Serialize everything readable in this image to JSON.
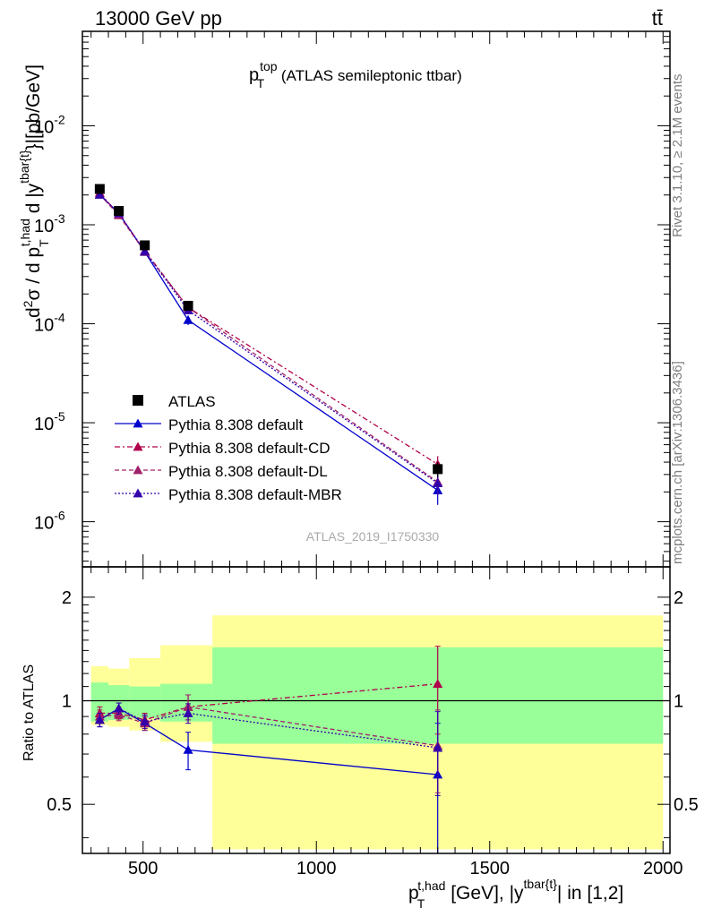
{
  "header": {
    "left": "13000 GeV pp",
    "right": "tt̄"
  },
  "side_text": {
    "rivet": "Rivet 3.1.10, ≥ 2.1M events",
    "mcplots": "mcplots.cern.ch [arXiv:1306.3436]"
  },
  "chart_data": [
    {
      "type": "line",
      "panel": "main",
      "title": {
        "main": "p",
        "sup": "top",
        "sub": "T",
        "rest": " (ATLAS semileptonic ttbar)"
      },
      "ylabel": "d²σ / d p_T^{t,had} d |y^{tbar{t}}|[pb/GeV]",
      "yscale": "log",
      "ylim": [
        3.5e-07,
        0.09
      ],
      "xlim": [
        325,
        2020
      ],
      "ytick_labels": [
        {
          "base": "10",
          "exp": "-6",
          "v": 1e-06
        },
        {
          "base": "10",
          "exp": "-5",
          "v": 1e-05
        },
        {
          "base": "10",
          "exp": "-4",
          "v": 0.0001
        },
        {
          "base": "10",
          "exp": "-3",
          "v": 0.001
        },
        {
          "base": "10",
          "exp": "-2",
          "v": 0.01
        }
      ],
      "watermark": "ATLAS_2019_I1750330",
      "legend_position": "lower-left",
      "data_points": {
        "name": "ATLAS",
        "color": "#000000",
        "x": [
          375,
          430,
          505,
          630,
          1350
        ],
        "y": [
          0.0023,
          0.00138,
          0.00062,
          0.000152,
          3.4e-06
        ],
        "bins": [
          [
            350,
            400
          ],
          [
            400,
            460
          ],
          [
            460,
            550
          ],
          [
            550,
            700
          ],
          [
            700,
            2000
          ]
        ],
        "err_lo": [
          0.0002,
          0.0001,
          4e-05,
          1.2e-05,
          6e-07
        ],
        "err_hi": [
          0.0002,
          0.0001,
          4e-05,
          1.2e-05,
          6e-07
        ]
      },
      "series": [
        {
          "name": "Pythia 8.308 default",
          "color": "#0000cc",
          "dash": "solid",
          "x": [
            375,
            430,
            505,
            630,
            1350
          ],
          "y": [
            0.00201,
            0.00131,
            0.000531,
            0.000109,
            2.08e-06
          ],
          "err_lo": [
            8e-05,
            5e-05,
            3e-05,
            1.2e-05,
            6e-07
          ],
          "err_hi": [
            8e-05,
            5e-05,
            3e-05,
            1.2e-05,
            6e-07
          ]
        },
        {
          "name": "Pythia 8.308 default-CD",
          "color": "#b0004a",
          "dash": "6,3,2,3",
          "x": [
            375,
            430,
            505,
            630,
            1350
          ],
          "y": [
            0.0021,
            0.00127,
            0.000546,
            0.000146,
            3.8e-06
          ],
          "err_lo": [
            8e-05,
            5e-05,
            3e-05,
            1.2e-05,
            8e-07
          ],
          "err_hi": [
            8e-05,
            5e-05,
            3e-05,
            1.2e-05,
            8e-07
          ]
        },
        {
          "name": "Pythia 8.308 default-DL",
          "color": "#a0206a",
          "dash": "5,3",
          "x": [
            375,
            430,
            505,
            630,
            1350
          ],
          "y": [
            0.00202,
            0.00125,
            0.000534,
            0.000146,
            2.52e-06
          ],
          "err_lo": [
            8e-05,
            5e-05,
            3e-05,
            1.2e-05,
            6e-07
          ],
          "err_hi": [
            8e-05,
            5e-05,
            3e-05,
            1.2e-05,
            6e-07
          ]
        },
        {
          "name": "Pythia 8.308 default-MBR",
          "color": "#3300aa",
          "dash": "2,2",
          "x": [
            375,
            430,
            505,
            630,
            1350
          ],
          "y": [
            0.00202,
            0.00131,
            0.000541,
            0.000137,
            2.45e-06
          ],
          "err_lo": [
            8e-05,
            5e-05,
            3e-05,
            1.2e-05,
            6e-07
          ],
          "err_hi": [
            8e-05,
            5e-05,
            3e-05,
            1.2e-05,
            6e-07
          ]
        }
      ]
    },
    {
      "type": "line",
      "panel": "ratio",
      "ylabel": "Ratio to ATLAS",
      "yscale": "log",
      "ylim": [
        0.36,
        2.45
      ],
      "xlim": [
        325,
        2020
      ],
      "reference_line": 1,
      "ytick_labels": [
        {
          "v": 0.5,
          "label": "0.5"
        },
        {
          "v": 1,
          "label": "1"
        },
        {
          "v": 2,
          "label": "2"
        }
      ],
      "xtick_labels": [
        {
          "v": 500,
          "label": "500"
        },
        {
          "v": 1000,
          "label": "1000"
        },
        {
          "v": 1500,
          "label": "1500"
        },
        {
          "v": 2000,
          "label": "2000"
        }
      ],
      "xlabel": {
        "main": "p",
        "sub": "T",
        "sup": "t,had",
        "mid": " [GeV], |y",
        "sup2": "tbar{t}",
        "end": "| in [1,2]"
      },
      "bands": {
        "bins": [
          [
            350,
            400
          ],
          [
            400,
            460
          ],
          [
            460,
            550
          ],
          [
            550,
            700
          ],
          [
            700,
            2000
          ]
        ],
        "inner": {
          "color": "#99ff99",
          "lo": [
            0.87,
            0.88,
            0.89,
            0.87,
            0.75
          ],
          "hi": [
            1.13,
            1.11,
            1.1,
            1.12,
            1.43
          ]
        },
        "outer": {
          "color": "#ffff99",
          "lo": [
            0.85,
            0.84,
            0.82,
            0.76,
            0.37
          ],
          "hi": [
            1.26,
            1.24,
            1.33,
            1.45,
            1.77
          ]
        }
      },
      "series": [
        {
          "name": "Pythia 8.308 default",
          "color": "#0000cc",
          "dash": "solid",
          "x": [
            375,
            430,
            505,
            630,
            1350
          ],
          "y": [
            0.88,
            0.95,
            0.86,
            0.72,
            0.61
          ],
          "err": [
            0.04,
            0.035,
            0.04,
            0.09,
            0.25
          ]
        },
        {
          "name": "Pythia 8.308 default-CD",
          "color": "#b0004a",
          "dash": "6,3,2,3",
          "x": [
            375,
            430,
            505,
            630,
            1350
          ],
          "y": [
            0.92,
            0.92,
            0.88,
            0.96,
            1.12
          ],
          "err": [
            0.04,
            0.035,
            0.04,
            0.08,
            0.32
          ]
        },
        {
          "name": "Pythia 8.308 default-DL",
          "color": "#a0206a",
          "dash": "5,3",
          "x": [
            375,
            430,
            505,
            630,
            1350
          ],
          "y": [
            0.9,
            0.91,
            0.86,
            0.96,
            0.74
          ],
          "err": [
            0.04,
            0.035,
            0.04,
            0.08,
            0.2
          ]
        },
        {
          "name": "Pythia 8.308 default-MBR",
          "color": "#3300aa",
          "dash": "2,2",
          "x": [
            375,
            430,
            505,
            630,
            1350
          ],
          "y": [
            0.88,
            0.95,
            0.87,
            0.92,
            0.73
          ],
          "err": [
            0.04,
            0.035,
            0.04,
            0.06,
            0.2
          ]
        }
      ]
    }
  ]
}
